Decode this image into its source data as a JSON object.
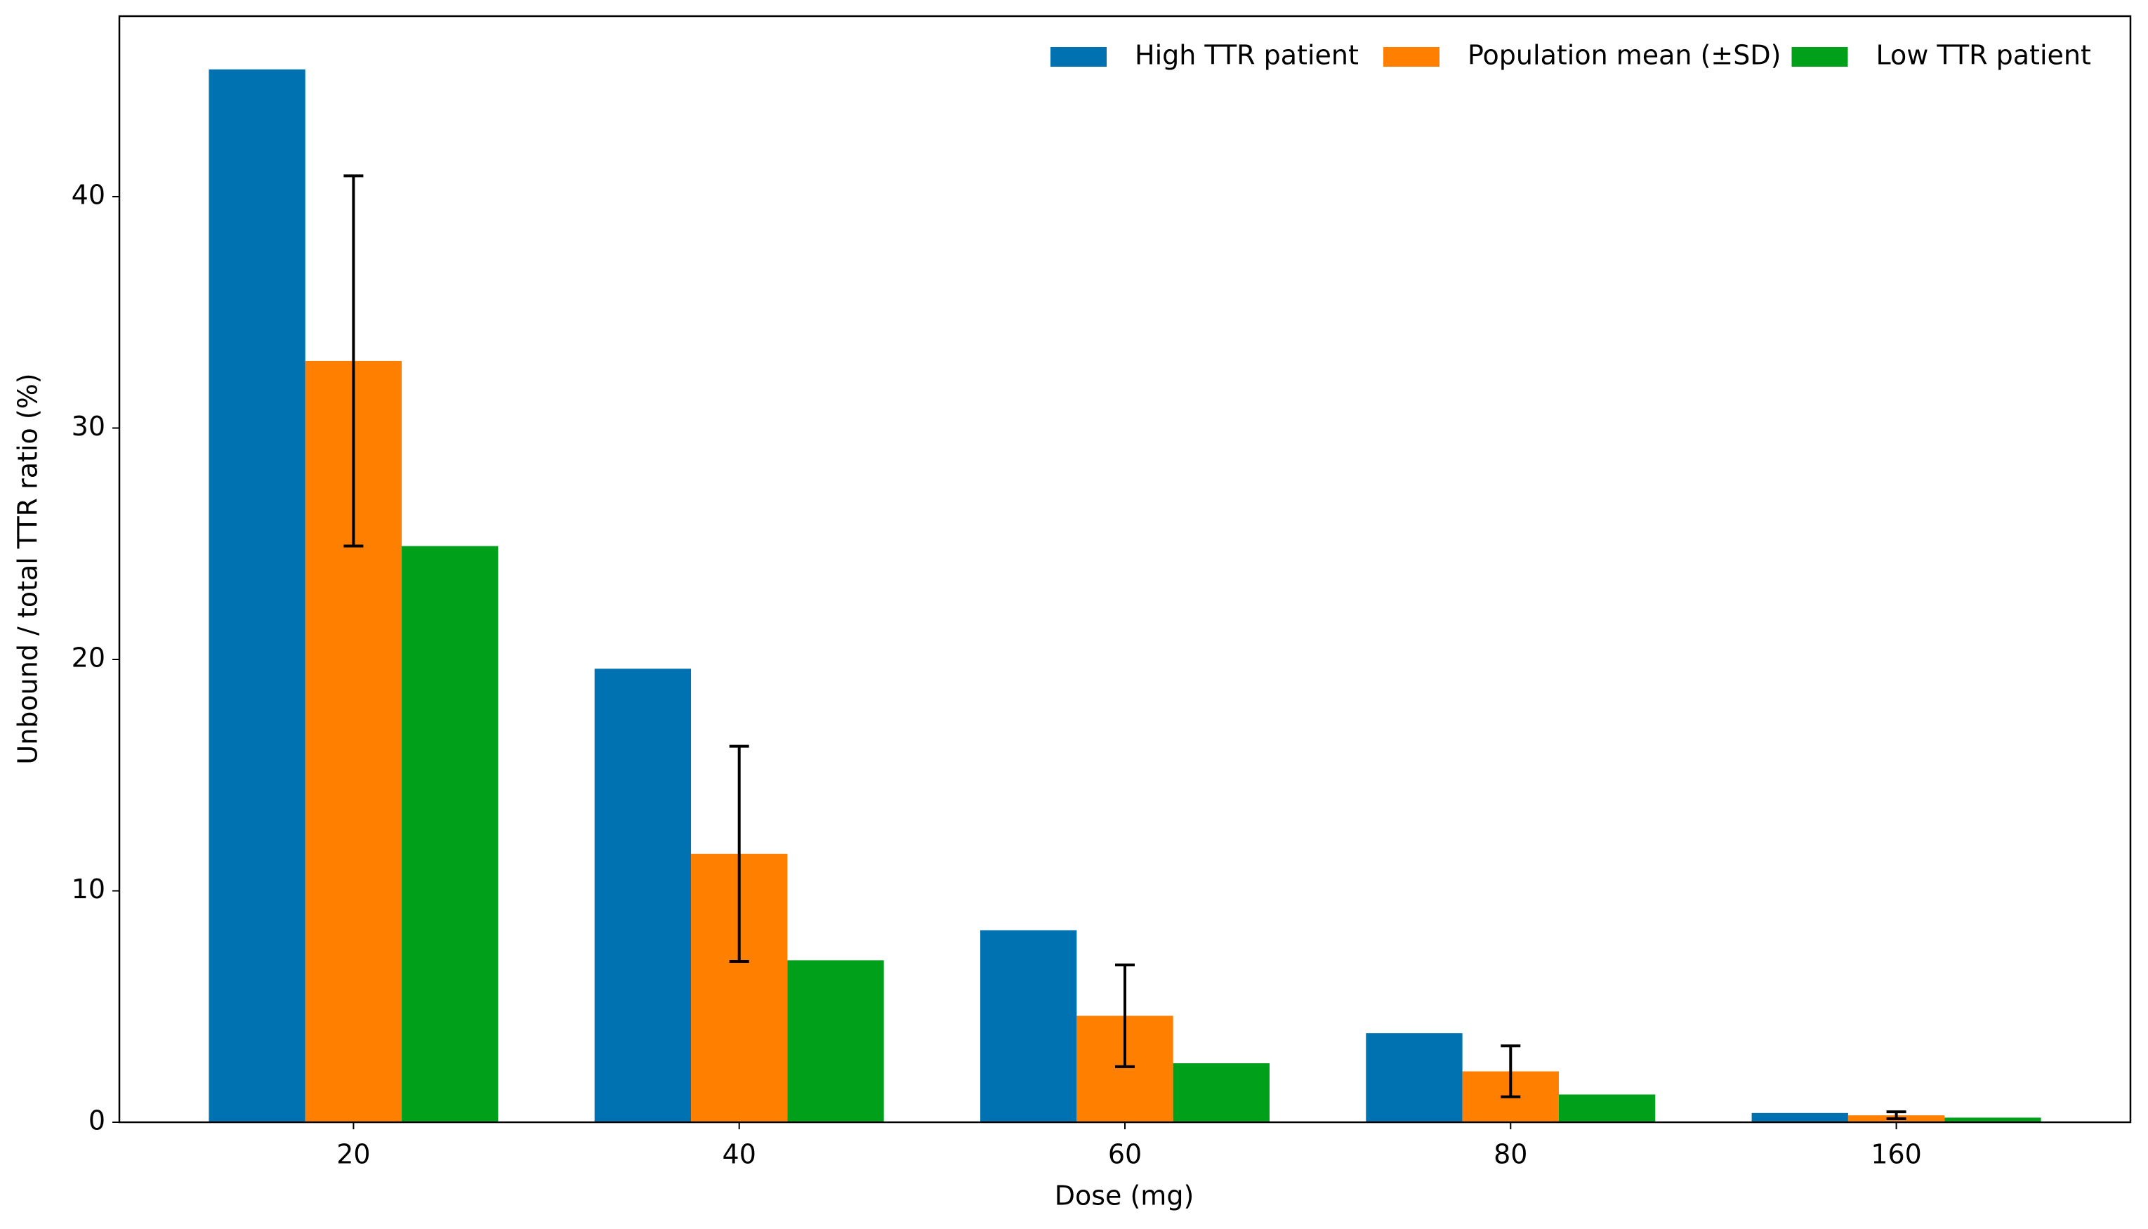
{
  "chart_data": {
    "type": "bar",
    "x_label": "Dose (mg)",
    "y_label": "Unbound / total TTR ratio (%)",
    "categories": [
      "20",
      "40",
      "60",
      "80",
      "160"
    ],
    "series": [
      {
        "name": "High TTR patient",
        "color": "#0072b2",
        "values": [
          45.5,
          19.6,
          8.3,
          3.85,
          0.4
        ]
      },
      {
        "name": "Population mean (±SD)",
        "color": "#ff7f00",
        "values": [
          32.9,
          11.6,
          4.6,
          2.2,
          0.3
        ],
        "errors": [
          8.0,
          4.65,
          2.2,
          1.1,
          0.15
        ]
      },
      {
        "name": "Low TTR patient",
        "color": "#00a01a",
        "values": [
          24.9,
          7.0,
          2.55,
          1.2,
          0.2
        ]
      }
    ],
    "ylim": [
      0,
      47.8
    ],
    "yticks": [
      0,
      10,
      20,
      30,
      40
    ],
    "legend": "upper right",
    "grid": false
  }
}
